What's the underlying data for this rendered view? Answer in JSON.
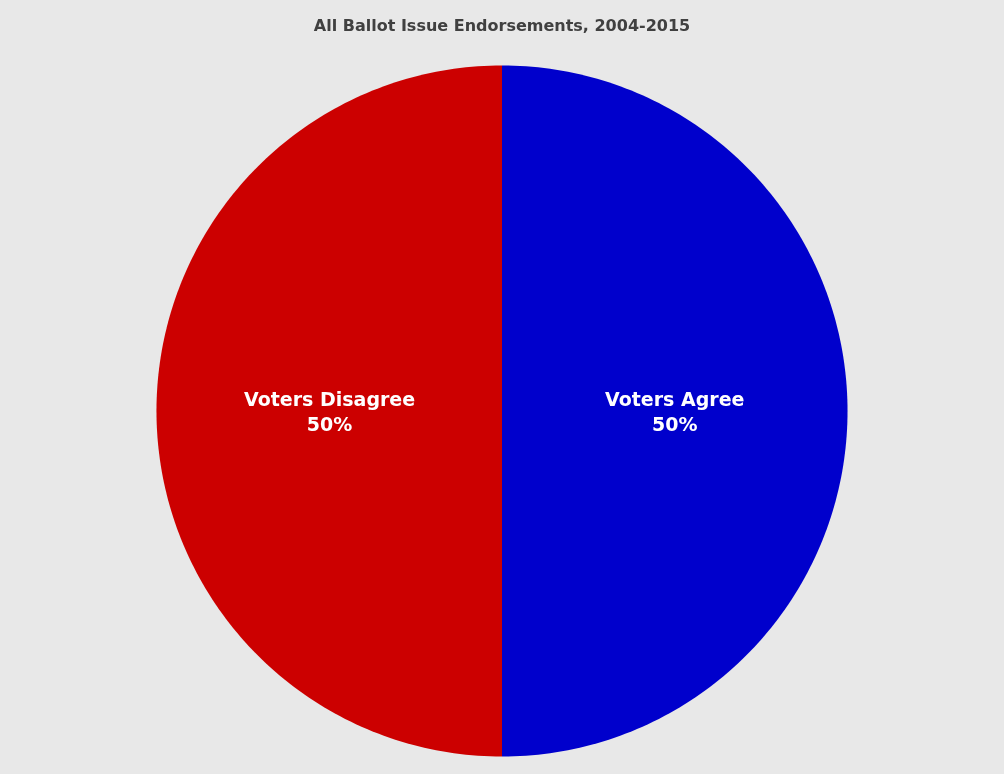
{
  "chart_data": {
    "type": "pie",
    "title": "All Ballot Issue Endorsements, 2004-2015",
    "categories": [
      "Voters Agree",
      "Voters Disagree"
    ],
    "values": [
      50,
      50
    ],
    "colors": [
      "#0000cc",
      "#cc0000"
    ],
    "value_labels": [
      "50%",
      "50%"
    ]
  }
}
